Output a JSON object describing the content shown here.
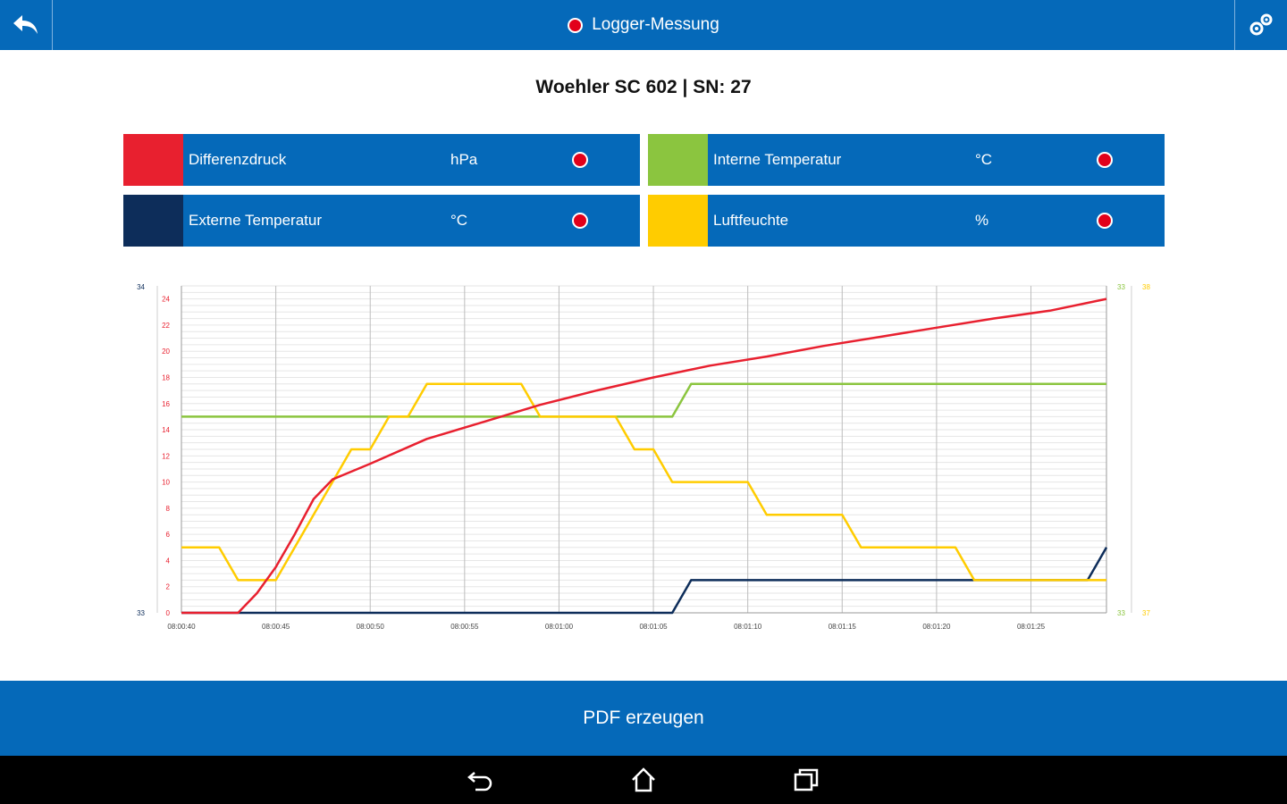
{
  "header": {
    "title": "Logger-Messung",
    "back_icon": "back-arrow-icon",
    "settings_icon": "gears-icon",
    "accent": "#0569b9",
    "record_color": "#e2001a"
  },
  "device_label": "Woehler SC 602 | SN: 27",
  "legend": [
    {
      "name": "Differenzdruck",
      "unit": "hPa",
      "color": "#e8202f",
      "status_icon": "record-dot-icon"
    },
    {
      "name": "Interne Temperatur",
      "unit": "°C",
      "color": "#8bc53f",
      "status_icon": "record-dot-icon"
    },
    {
      "name": "Externe Temperatur",
      "unit": "°C",
      "color": "#0d2d5a",
      "status_icon": "record-dot-icon"
    },
    {
      "name": "Luftfeuchte",
      "unit": "%",
      "color": "#ffcc00",
      "status_icon": "record-dot-icon"
    }
  ],
  "chart_data": {
    "type": "line",
    "x": [
      "08:00:40",
      "08:00:45",
      "08:00:50",
      "08:00:55",
      "08:01:00",
      "08:01:05",
      "08:01:10",
      "08:01:15",
      "08:01:20",
      "08:01:25"
    ],
    "xlim": [
      0,
      49
    ],
    "ylim": [
      0,
      25
    ],
    "y_ticks": [
      "0",
      "2",
      "4",
      "6",
      "8",
      "10",
      "12",
      "14",
      "16",
      "18",
      "20",
      "22",
      "24"
    ],
    "left_outer_labels": {
      "top": "34",
      "bottom": "33"
    },
    "right_inner_labels": {
      "top": "33",
      "bottom": "33"
    },
    "right_outer_labels": {
      "top": "38",
      "bottom": "37"
    },
    "grid": true,
    "series": [
      {
        "name": "Differenzdruck",
        "color": "#e8202f",
        "points": [
          [
            0,
            0
          ],
          [
            3,
            0
          ],
          [
            4,
            1.5
          ],
          [
            5,
            3.5
          ],
          [
            6,
            6
          ],
          [
            7,
            8.7
          ],
          [
            8,
            10.2
          ],
          [
            10,
            11.4
          ],
          [
            13,
            13.3
          ],
          [
            16,
            14.6
          ],
          [
            19,
            15.9
          ],
          [
            22,
            17
          ],
          [
            25,
            18
          ],
          [
            28,
            18.9
          ],
          [
            31,
            19.6
          ],
          [
            34,
            20.4
          ],
          [
            37,
            21.1
          ],
          [
            40,
            21.8
          ],
          [
            43,
            22.5
          ],
          [
            46,
            23.1
          ],
          [
            49,
            24
          ]
        ]
      },
      {
        "name": "Interne Temperatur",
        "color": "#8bc53f",
        "points": [
          [
            0,
            15
          ],
          [
            26,
            15
          ],
          [
            27,
            17.5
          ],
          [
            49,
            17.5
          ]
        ]
      },
      {
        "name": "Externe Temperatur",
        "color": "#0d2d5a",
        "points": [
          [
            0,
            0
          ],
          [
            26,
            0
          ],
          [
            27,
            2.5
          ],
          [
            48,
            2.5
          ],
          [
            49,
            5
          ]
        ]
      },
      {
        "name": "Luftfeuchte",
        "color": "#ffcc00",
        "points": [
          [
            0,
            5
          ],
          [
            2,
            5
          ],
          [
            3,
            2.5
          ],
          [
            5,
            2.5
          ],
          [
            9,
            12.5
          ],
          [
            10,
            12.5
          ],
          [
            11,
            15
          ],
          [
            12,
            15
          ],
          [
            13,
            17.5
          ],
          [
            18,
            17.5
          ],
          [
            19,
            15
          ],
          [
            23,
            15
          ],
          [
            24,
            12.5
          ],
          [
            25,
            12.5
          ],
          [
            26,
            10
          ],
          [
            30,
            10
          ],
          [
            31,
            7.5
          ],
          [
            35,
            7.5
          ],
          [
            36,
            5
          ],
          [
            41,
            5
          ],
          [
            42,
            2.5
          ],
          [
            49,
            2.5
          ]
        ]
      }
    ]
  },
  "footer": {
    "pdf_label": "PDF erzeugen"
  },
  "system_nav": {
    "back_icon": "android-back-icon",
    "home_icon": "android-home-icon",
    "recents_icon": "android-recents-icon"
  }
}
